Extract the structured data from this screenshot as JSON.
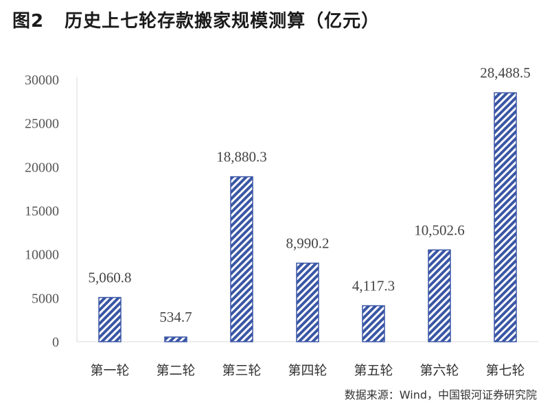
{
  "title": {
    "label": "图2",
    "text": "历史上七轮存款搬家规模测算（亿元）"
  },
  "source": "数据来源：Wind，中国银河证券研究院",
  "colors": {
    "bar_stroke": "#3a56a5",
    "bar_hatch": "#3a56a5",
    "axis": "#d9d9d9"
  },
  "chart_data": {
    "type": "bar",
    "title": "历史上七轮存款搬家规模测算（亿元）",
    "categories": [
      "第一轮",
      "第二轮",
      "第三轮",
      "第四轮",
      "第五轮",
      "第六轮",
      "第七轮"
    ],
    "values": [
      5060.8,
      534.7,
      18880.3,
      8990.2,
      4117.3,
      10502.6,
      28488.5
    ],
    "value_labels": [
      "5,060.8",
      "534.7",
      "18,880.3",
      "8,990.2",
      "4,117.3",
      "10,502.6",
      "28,488.5"
    ],
    "yticks": [
      "0",
      "5000",
      "10000",
      "15000",
      "20000",
      "25000",
      "30000"
    ],
    "ylim": [
      0,
      30000
    ],
    "grid": false,
    "legend": "none"
  }
}
